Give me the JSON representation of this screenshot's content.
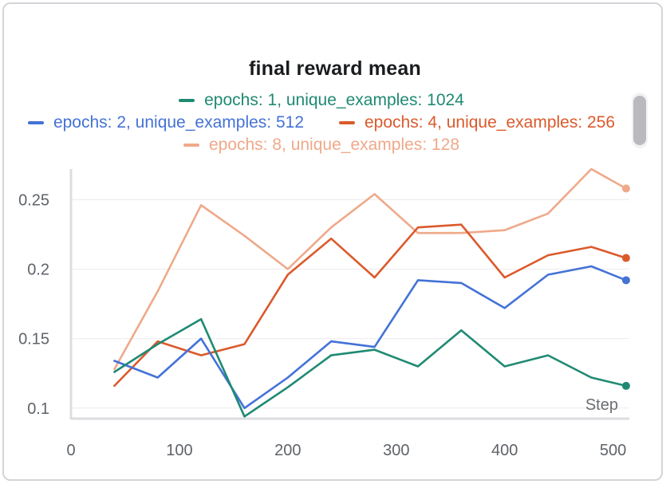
{
  "chart_data": {
    "type": "line",
    "title": "final reward mean",
    "xlabel": "Step",
    "ylabel": "",
    "xlim": [
      0,
      515
    ],
    "ylim": [
      0.093,
      0.272
    ],
    "x_ticks": [
      0,
      100,
      200,
      300,
      400,
      500
    ],
    "x_tick_labels": [
      "0",
      "100",
      "200",
      "300",
      "400",
      "500"
    ],
    "y_ticks": [
      0.1,
      0.15,
      0.2,
      0.25
    ],
    "y_tick_labels": [
      "0.1",
      "0.15",
      "0.2",
      "0.25"
    ],
    "grid": true,
    "legend_position": "top",
    "x": [
      40,
      80,
      120,
      160,
      200,
      240,
      280,
      320,
      360,
      400,
      440,
      480,
      512
    ],
    "series": [
      {
        "name": "epochs: 1, unique_examples: 1024",
        "color": "#1f8a72",
        "values": [
          0.126,
          0.146,
          0.164,
          0.094,
          0.115,
          0.138,
          0.142,
          0.13,
          0.156,
          0.13,
          0.138,
          0.122,
          0.116
        ]
      },
      {
        "name": "epochs: 2, unique_examples: 512",
        "color": "#4472d6",
        "values": [
          0.134,
          0.122,
          0.15,
          0.1,
          0.122,
          0.148,
          0.144,
          0.192,
          0.19,
          0.172,
          0.196,
          0.202,
          0.192
        ]
      },
      {
        "name": "epochs: 4, unique_examples: 256",
        "color": "#db5a2c",
        "values": [
          0.116,
          0.148,
          0.138,
          0.146,
          0.196,
          0.222,
          0.194,
          0.23,
          0.232,
          0.194,
          0.21,
          0.216,
          0.208
        ]
      },
      {
        "name": "epochs: 8, unique_examples: 128",
        "color": "#efa98a",
        "values": [
          0.128,
          0.184,
          0.246,
          0.224,
          0.2,
          0.23,
          0.254,
          0.226,
          0.226,
          0.228,
          0.24,
          0.272,
          0.258
        ]
      }
    ]
  }
}
